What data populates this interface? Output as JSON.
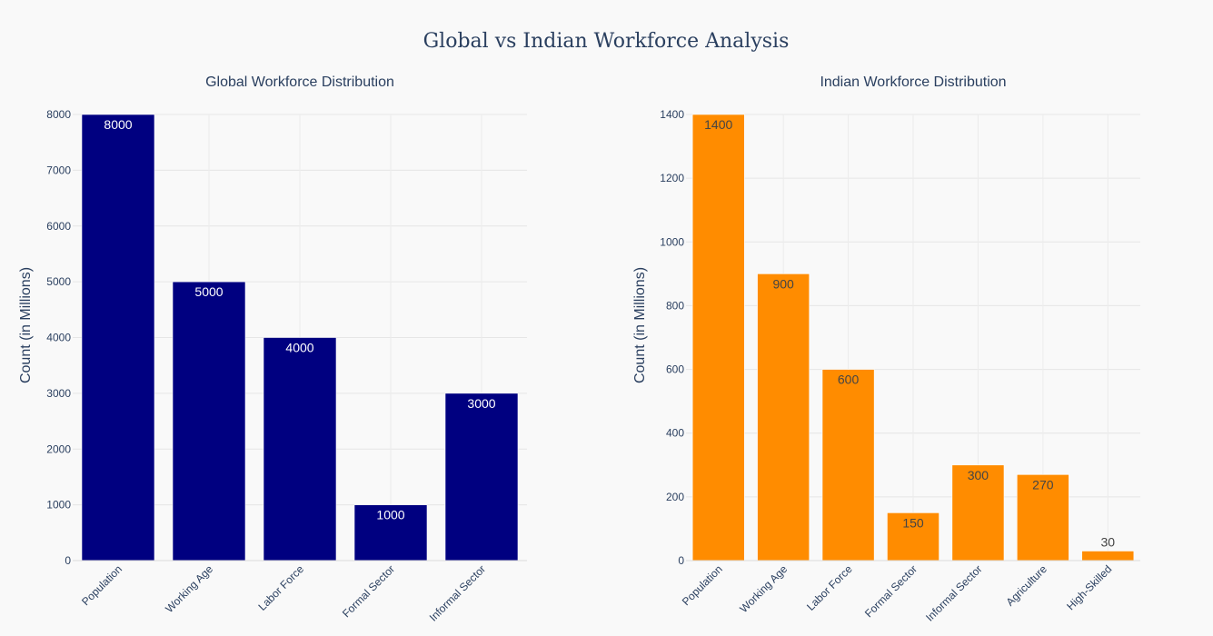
{
  "figure": {
    "title": "Global vs Indian Workforce Analysis"
  },
  "chart_data": [
    {
      "type": "bar",
      "title": "Global Workforce Distribution",
      "xlabel": "",
      "ylabel": "Count (in Millions)",
      "categories": [
        "Population",
        "Working Age",
        "Labor Force",
        "Formal Sector",
        "Informal Sector"
      ],
      "values": [
        8000,
        5000,
        4000,
        1000,
        3000
      ],
      "data_labels": [
        "8000",
        "5000",
        "4000",
        "1000",
        "3000"
      ],
      "ylim": [
        0,
        8000
      ],
      "yticks": [
        0,
        1000,
        2000,
        3000,
        4000,
        5000,
        6000,
        7000,
        8000
      ],
      "bar_color": "#000080",
      "label_color": "#ffffff",
      "grid": true
    },
    {
      "type": "bar",
      "title": "Indian Workforce Distribution",
      "xlabel": "",
      "ylabel": "Count (in Millions)",
      "categories": [
        "Population",
        "Working Age",
        "Labor Force",
        "Formal Sector",
        "Informal Sector",
        "Agriculture",
        "High-Skilled"
      ],
      "values": [
        1400,
        900,
        600,
        150,
        300,
        270,
        30
      ],
      "data_labels": [
        "1400",
        "900",
        "600",
        "150",
        "300",
        "270",
        "30"
      ],
      "ylim": [
        0,
        1400
      ],
      "yticks": [
        0,
        200,
        400,
        600,
        800,
        1000,
        1200,
        1400
      ],
      "bar_color": "#ff8c00",
      "label_color": "#444444",
      "grid": true
    }
  ]
}
